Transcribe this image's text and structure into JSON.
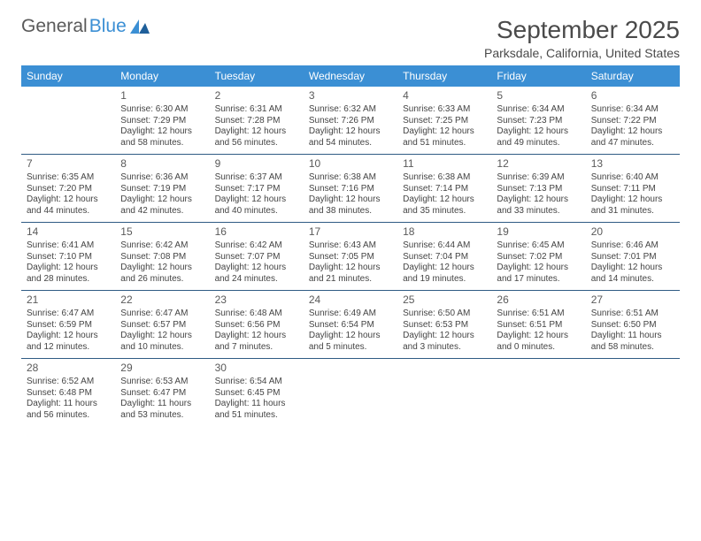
{
  "logo": {
    "general": "General",
    "blue": "Blue"
  },
  "title": "September 2025",
  "location": "Parksdale, California, United States",
  "colors": {
    "header_bg": "#3b8fd4",
    "header_text": "#ffffff",
    "week_divider": "#2f5b84",
    "body_text": "#444444",
    "title_text": "#4a4a4a"
  },
  "day_header_fontsize": 12,
  "cell_fontsize": 10,
  "daynum_fontsize": 12,
  "day_headers": [
    "Sunday",
    "Monday",
    "Tuesday",
    "Wednesday",
    "Thursday",
    "Friday",
    "Saturday"
  ],
  "weeks": [
    [
      {
        "n": "",
        "sr": "",
        "ss": "",
        "dl": ""
      },
      {
        "n": "1",
        "sr": "6:30 AM",
        "ss": "7:29 PM",
        "dl": "12 hours and 58 minutes."
      },
      {
        "n": "2",
        "sr": "6:31 AM",
        "ss": "7:28 PM",
        "dl": "12 hours and 56 minutes."
      },
      {
        "n": "3",
        "sr": "6:32 AM",
        "ss": "7:26 PM",
        "dl": "12 hours and 54 minutes."
      },
      {
        "n": "4",
        "sr": "6:33 AM",
        "ss": "7:25 PM",
        "dl": "12 hours and 51 minutes."
      },
      {
        "n": "5",
        "sr": "6:34 AM",
        "ss": "7:23 PM",
        "dl": "12 hours and 49 minutes."
      },
      {
        "n": "6",
        "sr": "6:34 AM",
        "ss": "7:22 PM",
        "dl": "12 hours and 47 minutes."
      }
    ],
    [
      {
        "n": "7",
        "sr": "6:35 AM",
        "ss": "7:20 PM",
        "dl": "12 hours and 44 minutes."
      },
      {
        "n": "8",
        "sr": "6:36 AM",
        "ss": "7:19 PM",
        "dl": "12 hours and 42 minutes."
      },
      {
        "n": "9",
        "sr": "6:37 AM",
        "ss": "7:17 PM",
        "dl": "12 hours and 40 minutes."
      },
      {
        "n": "10",
        "sr": "6:38 AM",
        "ss": "7:16 PM",
        "dl": "12 hours and 38 minutes."
      },
      {
        "n": "11",
        "sr": "6:38 AM",
        "ss": "7:14 PM",
        "dl": "12 hours and 35 minutes."
      },
      {
        "n": "12",
        "sr": "6:39 AM",
        "ss": "7:13 PM",
        "dl": "12 hours and 33 minutes."
      },
      {
        "n": "13",
        "sr": "6:40 AM",
        "ss": "7:11 PM",
        "dl": "12 hours and 31 minutes."
      }
    ],
    [
      {
        "n": "14",
        "sr": "6:41 AM",
        "ss": "7:10 PM",
        "dl": "12 hours and 28 minutes."
      },
      {
        "n": "15",
        "sr": "6:42 AM",
        "ss": "7:08 PM",
        "dl": "12 hours and 26 minutes."
      },
      {
        "n": "16",
        "sr": "6:42 AM",
        "ss": "7:07 PM",
        "dl": "12 hours and 24 minutes."
      },
      {
        "n": "17",
        "sr": "6:43 AM",
        "ss": "7:05 PM",
        "dl": "12 hours and 21 minutes."
      },
      {
        "n": "18",
        "sr": "6:44 AM",
        "ss": "7:04 PM",
        "dl": "12 hours and 19 minutes."
      },
      {
        "n": "19",
        "sr": "6:45 AM",
        "ss": "7:02 PM",
        "dl": "12 hours and 17 minutes."
      },
      {
        "n": "20",
        "sr": "6:46 AM",
        "ss": "7:01 PM",
        "dl": "12 hours and 14 minutes."
      }
    ],
    [
      {
        "n": "21",
        "sr": "6:47 AM",
        "ss": "6:59 PM",
        "dl": "12 hours and 12 minutes."
      },
      {
        "n": "22",
        "sr": "6:47 AM",
        "ss": "6:57 PM",
        "dl": "12 hours and 10 minutes."
      },
      {
        "n": "23",
        "sr": "6:48 AM",
        "ss": "6:56 PM",
        "dl": "12 hours and 7 minutes."
      },
      {
        "n": "24",
        "sr": "6:49 AM",
        "ss": "6:54 PM",
        "dl": "12 hours and 5 minutes."
      },
      {
        "n": "25",
        "sr": "6:50 AM",
        "ss": "6:53 PM",
        "dl": "12 hours and 3 minutes."
      },
      {
        "n": "26",
        "sr": "6:51 AM",
        "ss": "6:51 PM",
        "dl": "12 hours and 0 minutes."
      },
      {
        "n": "27",
        "sr": "6:51 AM",
        "ss": "6:50 PM",
        "dl": "11 hours and 58 minutes."
      }
    ],
    [
      {
        "n": "28",
        "sr": "6:52 AM",
        "ss": "6:48 PM",
        "dl": "11 hours and 56 minutes."
      },
      {
        "n": "29",
        "sr": "6:53 AM",
        "ss": "6:47 PM",
        "dl": "11 hours and 53 minutes."
      },
      {
        "n": "30",
        "sr": "6:54 AM",
        "ss": "6:45 PM",
        "dl": "11 hours and 51 minutes."
      },
      {
        "n": "",
        "sr": "",
        "ss": "",
        "dl": ""
      },
      {
        "n": "",
        "sr": "",
        "ss": "",
        "dl": ""
      },
      {
        "n": "",
        "sr": "",
        "ss": "",
        "dl": ""
      },
      {
        "n": "",
        "sr": "",
        "ss": "",
        "dl": ""
      }
    ]
  ]
}
